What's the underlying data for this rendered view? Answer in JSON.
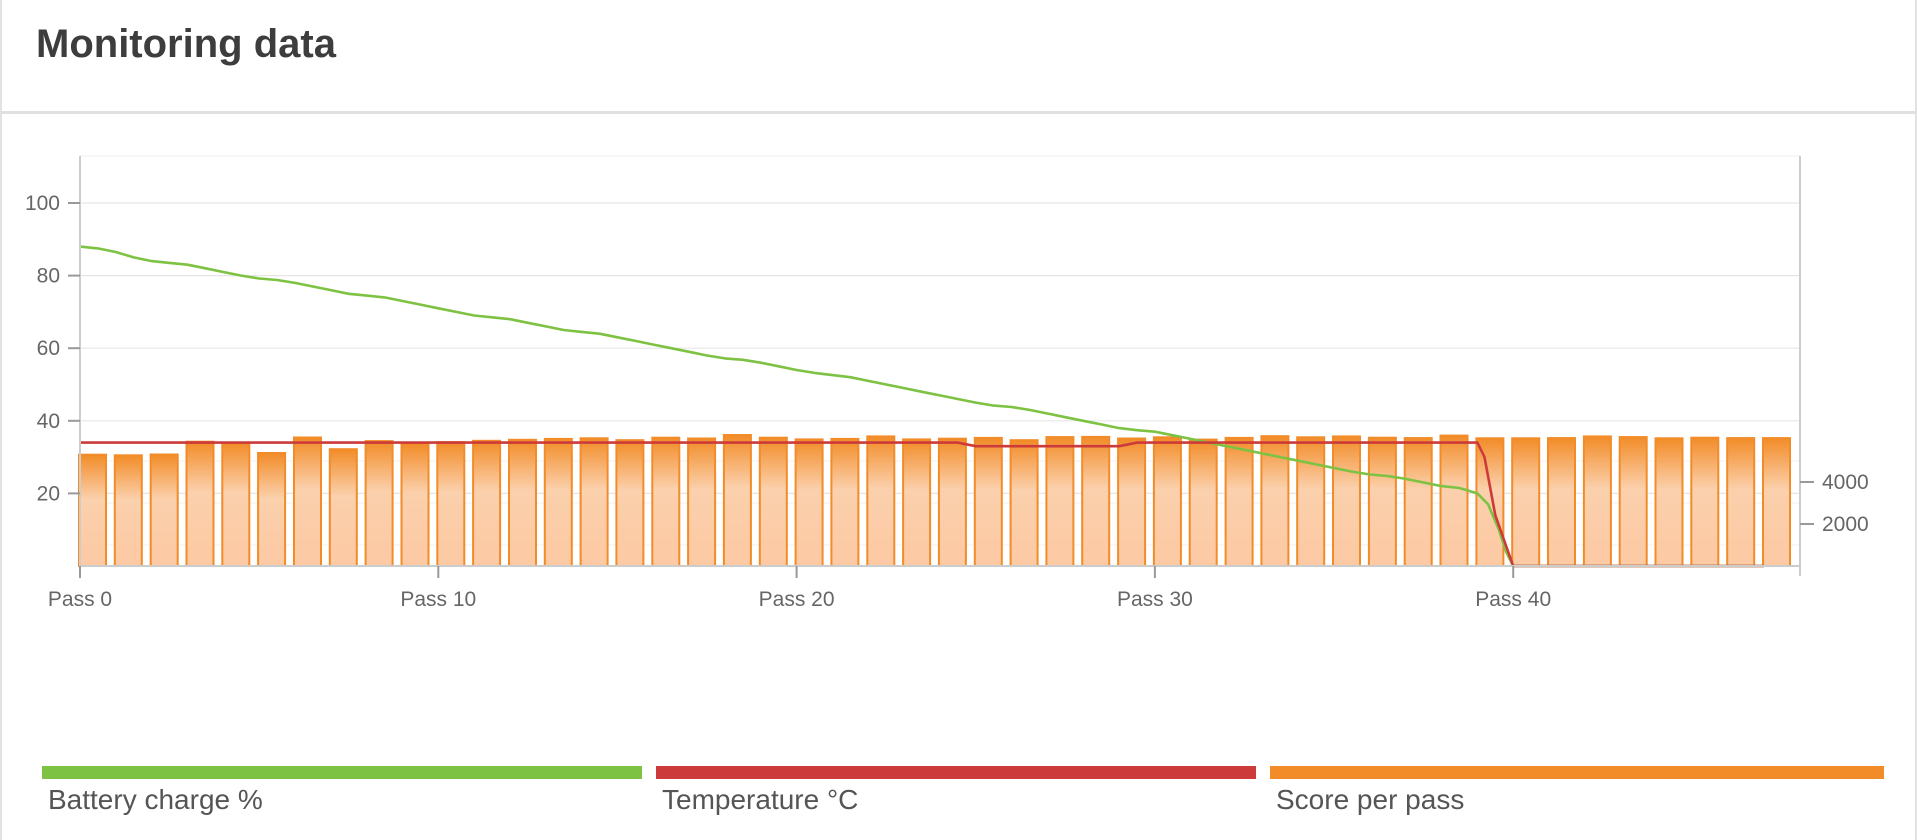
{
  "header": {
    "title": "Monitoring data"
  },
  "chart_data": {
    "type": "bar+line",
    "x_tick_labels": [
      "Pass 0",
      "Pass 10",
      "Pass 20",
      "Pass 30",
      "Pass 40"
    ],
    "x_ticks": [
      0,
      10,
      20,
      30,
      40
    ],
    "xlim": [
      0,
      48
    ],
    "left_axis": {
      "ylim": [
        0,
        110
      ],
      "ticks": [
        20,
        40,
        60,
        80,
        100
      ]
    },
    "right_axis": {
      "ylim": [
        0,
        6850
      ],
      "ticks": [
        2000,
        4000
      ]
    },
    "grid": true,
    "legend_position": "bottom",
    "series": [
      {
        "name": "Score per pass",
        "type": "bar",
        "axis": "right",
        "color": "#f28c28",
        "x": [
          0,
          1,
          2,
          3,
          4,
          5,
          6,
          7,
          8,
          9,
          10,
          11,
          12,
          13,
          14,
          15,
          16,
          17,
          18,
          19,
          20,
          21,
          22,
          23,
          24,
          25,
          26,
          27,
          28,
          29,
          30,
          31,
          32,
          33,
          34,
          35,
          36,
          37,
          38,
          39,
          40,
          41,
          42,
          43,
          44,
          45,
          46,
          47
        ],
        "values": [
          5300,
          5270,
          5310,
          5920,
          5850,
          5380,
          6120,
          5560,
          5950,
          5820,
          5900,
          5960,
          6010,
          6050,
          6080,
          5990,
          6110,
          6070,
          6240,
          6110,
          6030,
          6050,
          6170,
          6030,
          6060,
          6100,
          5990,
          6140,
          6150,
          6070,
          6130,
          6020,
          6100,
          6180,
          6130,
          6170,
          6110,
          6090,
          6210,
          6080,
          6080,
          6090,
          6170,
          6140,
          6080,
          6110,
          6090,
          6090
        ]
      },
      {
        "name": "Battery charge %",
        "type": "line",
        "axis": "left",
        "color": "#7dc242",
        "x": [
          0,
          0.5,
          1,
          1.5,
          2,
          2.5,
          3,
          3.5,
          4,
          4.5,
          5,
          5.5,
          6,
          6.5,
          7,
          7.5,
          8,
          8.5,
          9,
          9.5,
          10,
          10.5,
          11,
          11.5,
          12,
          12.5,
          13,
          13.5,
          14,
          14.5,
          15,
          15.5,
          16,
          16.5,
          17,
          17.5,
          18,
          18.5,
          19,
          19.5,
          20,
          20.5,
          21,
          21.5,
          22,
          22.5,
          23,
          23.5,
          24,
          24.5,
          25,
          25.5,
          26,
          26.5,
          27,
          27.5,
          28,
          28.5,
          29,
          29.5,
          30,
          30.5,
          31,
          31.5,
          32,
          32.5,
          33,
          33.5,
          34,
          34.5,
          35,
          35.5,
          36,
          36.5,
          37,
          37.5,
          38,
          38.5,
          39,
          39.3,
          39.6,
          39.8,
          40,
          40.5,
          47
        ],
        "values": [
          88,
          87.5,
          86.5,
          85,
          84,
          83.5,
          83,
          82,
          81,
          80,
          79.2,
          78.8,
          78,
          77,
          76,
          75,
          74.5,
          74,
          73,
          72,
          71,
          70,
          69,
          68.5,
          68,
          67,
          66,
          65,
          64.5,
          64,
          63,
          62,
          61,
          60,
          59,
          58,
          57.2,
          56.8,
          56,
          55,
          54,
          53.2,
          52.6,
          52,
          51,
          50,
          49,
          48,
          47,
          46,
          45,
          44.2,
          43.8,
          43,
          42,
          41,
          40,
          39,
          38,
          37.4,
          37,
          36,
          35,
          34,
          33,
          32,
          31,
          30,
          29,
          28,
          27,
          26,
          25.2,
          24.8,
          24,
          23,
          22,
          21.5,
          20,
          17,
          10,
          4,
          0,
          0,
          0
        ]
      },
      {
        "name": "Temperature °C",
        "type": "line",
        "axis": "left",
        "color": "#cc3a3a",
        "x": [
          0,
          24,
          24.5,
          25,
          27.5,
          28,
          29,
          29.5,
          30,
          39,
          39.2,
          39.5,
          40,
          47
        ],
        "values": [
          34,
          34,
          34,
          33,
          33,
          33,
          33,
          34,
          34,
          34,
          30,
          14,
          0,
          0
        ]
      }
    ]
  },
  "legend": [
    {
      "label": "Battery charge %",
      "color": "#7dc242"
    },
    {
      "label": "Temperature °C",
      "color": "#cc3a3a"
    },
    {
      "label": "Score per pass",
      "color": "#f28c28"
    }
  ]
}
